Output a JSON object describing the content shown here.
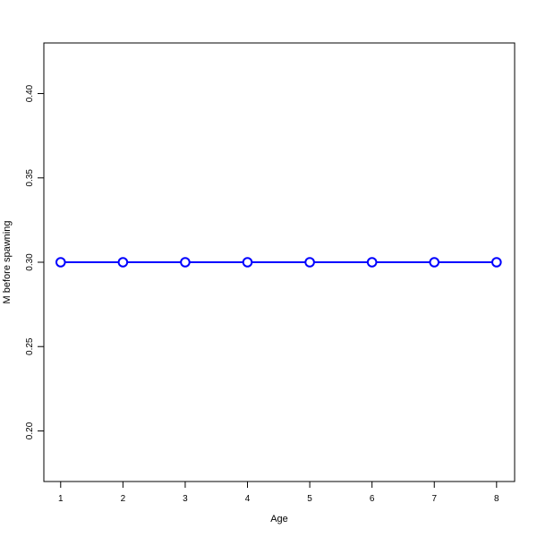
{
  "chart_data": {
    "type": "line",
    "title": "",
    "xlabel": "Age",
    "ylabel": "M before spawning",
    "x": [
      1,
      2,
      3,
      4,
      5,
      6,
      7,
      8
    ],
    "series": [
      {
        "values": [
          0.3,
          0.3,
          0.3,
          0.3,
          0.3,
          0.3,
          0.3,
          0.3
        ],
        "color": "#0000ff",
        "marker": "open-circle"
      }
    ],
    "xlim": [
      0.73,
      8.29
    ],
    "ylim": [
      0.17,
      0.43
    ],
    "xticks": [
      "1",
      "2",
      "3",
      "4",
      "5",
      "6",
      "7",
      "8"
    ],
    "yticks": [
      "0.20",
      "0.25",
      "0.30",
      "0.35",
      "0.40"
    ],
    "grid": false
  }
}
